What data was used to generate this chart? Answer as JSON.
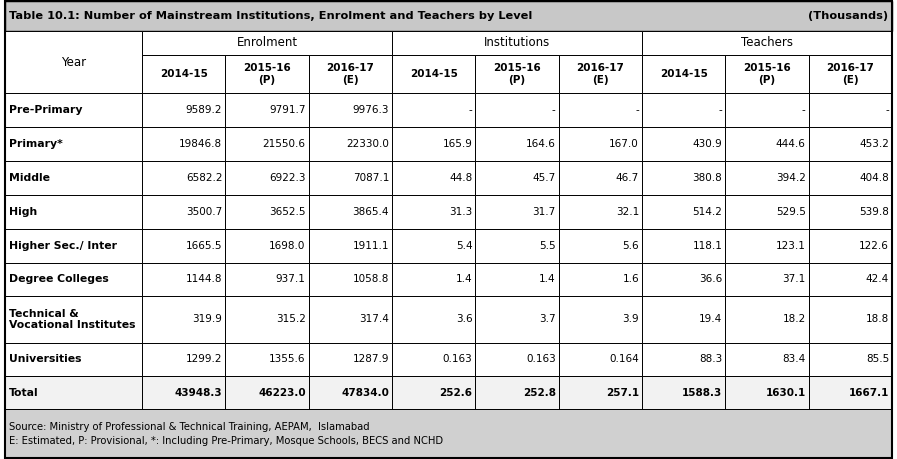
{
  "title": "Table 10.1: Number of Mainstream Institutions, Enrolment and Teachers by Level",
  "title_right": "(Thousands)",
  "footer_lines": [
    "Source: Ministry of Professional & Technical Training, AEPAM,  Islamabad",
    "E: Estimated, P: Provisional, *: Including Pre-Primary, Mosque Schools, BECS and NCHD"
  ],
  "rows": [
    {
      "label": "Pre-Primary",
      "values": [
        "9589.2",
        "9791.7",
        "9976.3",
        "-",
        "-",
        "-",
        "-",
        "-",
        "-"
      ],
      "bold_label": true,
      "bold_vals": false,
      "is_total": false
    },
    {
      "label": "Primary*",
      "values": [
        "19846.8",
        "21550.6",
        "22330.0",
        "165.9",
        "164.6",
        "167.0",
        "430.9",
        "444.6",
        "453.2"
      ],
      "bold_label": true,
      "bold_vals": false,
      "is_total": false
    },
    {
      "label": "Middle",
      "values": [
        "6582.2",
        "6922.3",
        "7087.1",
        "44.8",
        "45.7",
        "46.7",
        "380.8",
        "394.2",
        "404.8"
      ],
      "bold_label": true,
      "bold_vals": false,
      "is_total": false
    },
    {
      "label": "High",
      "values": [
        "3500.7",
        "3652.5",
        "3865.4",
        "31.3",
        "31.7",
        "32.1",
        "514.2",
        "529.5",
        "539.8"
      ],
      "bold_label": true,
      "bold_vals": false,
      "is_total": false
    },
    {
      "label": "Higher Sec./ Inter",
      "values": [
        "1665.5",
        "1698.0",
        "1911.1",
        "5.4",
        "5.5",
        "5.6",
        "118.1",
        "123.1",
        "122.6"
      ],
      "bold_label": true,
      "bold_vals": false,
      "is_total": false
    },
    {
      "label": "Degree Colleges",
      "values": [
        "1144.8",
        "937.1",
        "1058.8",
        "1.4",
        "1.4",
        "1.6",
        "36.6",
        "37.1",
        "42.4"
      ],
      "bold_label": true,
      "bold_vals": false,
      "is_total": false
    },
    {
      "label": "Technical &\nVocational Institutes",
      "values": [
        "319.9",
        "315.2",
        "317.4",
        "3.6",
        "3.7",
        "3.9",
        "19.4",
        "18.2",
        "18.8"
      ],
      "bold_label": true,
      "bold_vals": false,
      "is_total": false,
      "tall": true
    },
    {
      "label": "Universities",
      "values": [
        "1299.2",
        "1355.6",
        "1287.9",
        "0.163",
        "0.163",
        "0.164",
        "88.3",
        "83.4",
        "85.5"
      ],
      "bold_label": true,
      "bold_vals": false,
      "is_total": false
    },
    {
      "label": "Total",
      "values": [
        "43948.3",
        "46223.0",
        "47834.0",
        "252.6",
        "252.8",
        "257.1",
        "1588.3",
        "1630.1",
        "1667.1"
      ],
      "bold_label": true,
      "bold_vals": true,
      "is_total": true
    }
  ],
  "header_bg": "#c8c8c8",
  "row_bg": "#ffffff",
  "footer_bg": "#d0d0d0",
  "border_color": "#000000"
}
